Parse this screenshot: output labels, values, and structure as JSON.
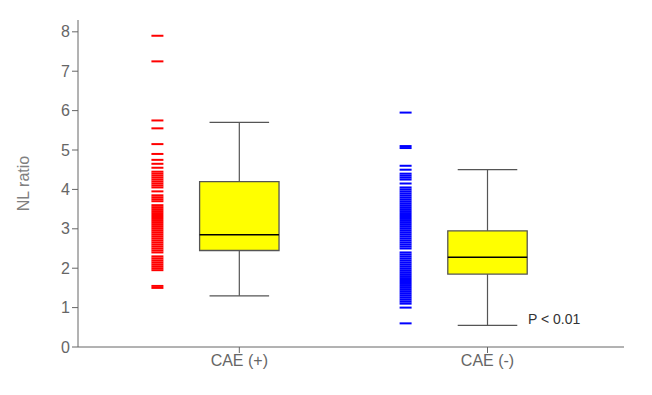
{
  "chart_data": {
    "type": "box",
    "categories": [
      "CAE (+)",
      "CAE (-)"
    ],
    "boxes": [
      {
        "median": 2.85,
        "q1": 2.45,
        "q3": 4.2,
        "whisker_low": 1.3,
        "whisker_high": 5.7
      },
      {
        "median": 2.28,
        "q1": 1.85,
        "q3": 2.95,
        "whisker_low": 0.55,
        "whisker_high": 4.5
      }
    ],
    "points": [
      [
        7.9,
        7.25,
        5.75,
        5.55,
        5.15,
        4.9,
        4.75,
        4.65,
        4.55,
        4.45,
        4.4,
        4.35,
        4.3,
        4.25,
        4.2,
        4.15,
        4.1,
        4.05,
        3.95,
        3.85,
        3.8,
        3.75,
        3.7,
        3.6,
        3.55,
        3.5,
        3.45,
        3.4,
        3.35,
        3.3,
        3.25,
        3.2,
        3.15,
        3.1,
        3.05,
        3.0,
        2.95,
        2.9,
        2.85,
        2.8,
        2.75,
        2.7,
        2.65,
        2.6,
        2.55,
        2.5,
        2.45,
        2.4,
        2.3,
        2.25,
        2.2,
        2.15,
        2.1,
        2.05,
        2.0,
        1.95,
        1.55,
        1.5
      ],
      [
        5.95,
        5.1,
        5.05,
        4.6,
        4.5,
        4.4,
        4.35,
        4.3,
        4.25,
        4.15,
        4.05,
        4.0,
        3.95,
        3.9,
        3.85,
        3.8,
        3.75,
        3.7,
        3.65,
        3.6,
        3.55,
        3.5,
        3.45,
        3.4,
        3.35,
        3.3,
        3.25,
        3.2,
        3.15,
        3.1,
        3.05,
        3.0,
        2.95,
        2.9,
        2.85,
        2.8,
        2.75,
        2.7,
        2.65,
        2.6,
        2.55,
        2.5,
        2.4,
        2.35,
        2.3,
        2.25,
        2.2,
        2.15,
        2.1,
        2.05,
        2.0,
        1.95,
        1.9,
        1.85,
        1.8,
        1.75,
        1.7,
        1.65,
        1.6,
        1.55,
        1.5,
        1.45,
        1.4,
        1.35,
        1.3,
        1.25,
        1.2,
        1.15,
        1.1,
        1.0,
        0.6
      ]
    ],
    "color": "#ffff00",
    "colors": [
      "#ff0000",
      "#0000ff"
    ],
    "ylabel": "NL ratio",
    "annotation": "P < 0.01",
    "ylim": [
      0,
      8.3
    ],
    "yticks": [
      0,
      1,
      2,
      3,
      4,
      5,
      6,
      7,
      8
    ],
    "grid": false
  }
}
